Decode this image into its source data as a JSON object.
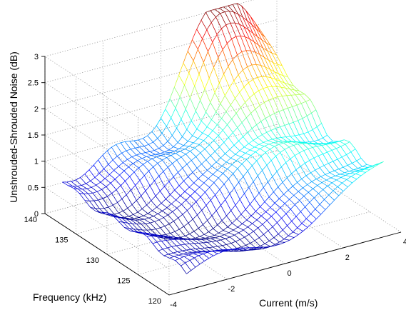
{
  "chart_data": {
    "type": "surface",
    "xlabel": "Current (m/s)",
    "ylabel": "Frequency (kHz)",
    "zlabel": "Unshrouded-Shrouded Noise (dB)",
    "xlim": [
      -4,
      4
    ],
    "ylim": [
      120,
      140
    ],
    "zlim": [
      0,
      3
    ],
    "x_ticks": [
      "-4",
      "-2",
      "0",
      "2",
      "4"
    ],
    "y_ticks": [
      "120",
      "125",
      "130",
      "135",
      "140"
    ],
    "z_ticks": [
      "0",
      "0.5",
      "1",
      "1.5",
      "2",
      "2.5",
      "3"
    ],
    "grid": true,
    "colormap": "jet",
    "current_range_data": [
      -3.4,
      3.4
    ],
    "frequency_range_data": [
      120,
      140
    ],
    "surface_shape": "broad rise toward positive current and high frequency; along the front (about 120 kHz) the noise rises from about 0.3 dB at -3.4 m/s to about 1.4 dB at +3.4 m/s; at 140 kHz it rises from about 0.7 dB near -3 m/s to a peak of about 3 dB near 2 m/s"
  }
}
